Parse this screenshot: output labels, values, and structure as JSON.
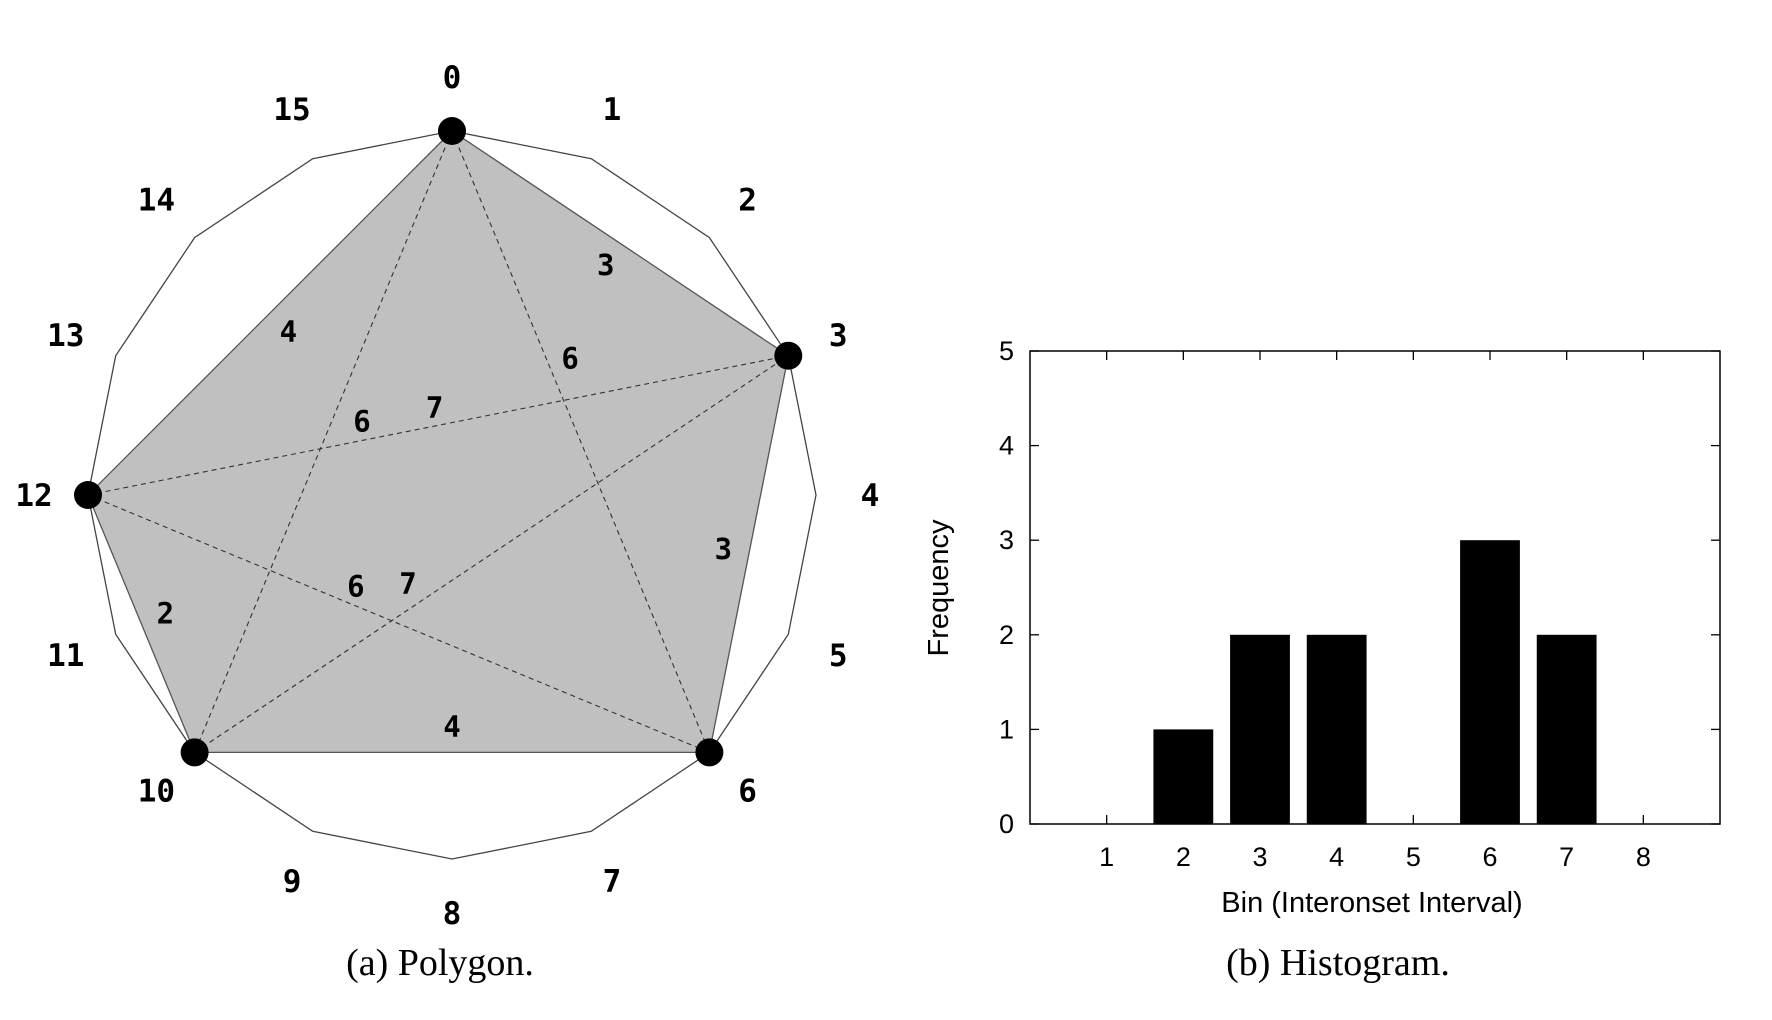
{
  "polygon": {
    "positions": 16,
    "rim_labels": [
      "0",
      "1",
      "2",
      "3",
      "4",
      "5",
      "6",
      "7",
      "8",
      "9",
      "10",
      "11",
      "12",
      "13",
      "14",
      "15"
    ],
    "onsets": [
      0,
      3,
      6,
      10,
      12
    ],
    "side_labels": [
      {
        "from": 0,
        "to": 3,
        "label": "3"
      },
      {
        "from": 3,
        "to": 6,
        "label": "3"
      },
      {
        "from": 6,
        "to": 10,
        "label": "4"
      },
      {
        "from": 10,
        "to": 12,
        "label": "2"
      },
      {
        "from": 12,
        "to": 0,
        "label": "4"
      }
    ],
    "diagonal_labels": [
      {
        "from": 0,
        "to": 10,
        "label": "6"
      },
      {
        "from": 0,
        "to": 6,
        "label": "6"
      },
      {
        "from": 12,
        "to": 3,
        "label": "7"
      },
      {
        "from": 10,
        "to": 3,
        "label": "7"
      },
      {
        "from": 12,
        "to": 6,
        "label": "6"
      }
    ],
    "fill_color": "#c0c0c0"
  },
  "captions": {
    "a": "(a) Polygon.",
    "b": "(b) Histogram."
  },
  "chart_data": {
    "type": "bar",
    "categories": [
      "1",
      "2",
      "3",
      "4",
      "5",
      "6",
      "7",
      "8"
    ],
    "values": [
      0,
      1,
      2,
      2,
      0,
      3,
      2,
      0
    ],
    "xlabel": "Bin (Interonset Interval)",
    "ylabel": "Frequency",
    "ylim": [
      0,
      5
    ],
    "yticks": [
      "0",
      "1",
      "2",
      "3",
      "4",
      "5"
    ],
    "bar_color": "#000000",
    "grid": false
  }
}
